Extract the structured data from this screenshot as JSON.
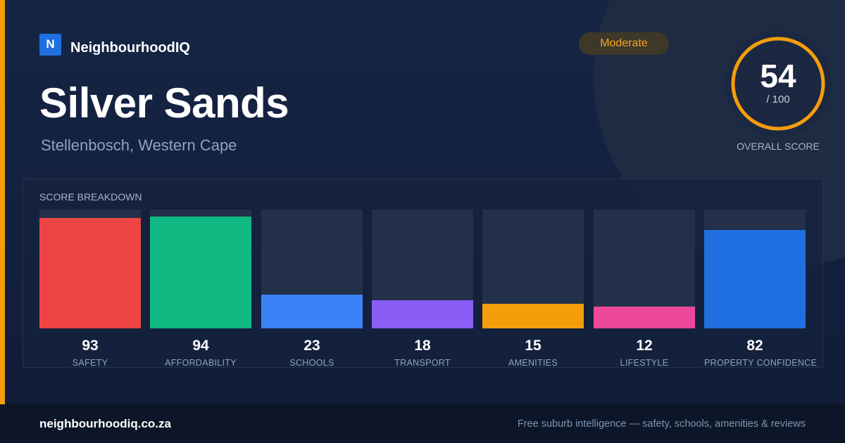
{
  "brand": {
    "logo_letter": "N",
    "name": "NeighbourhoodIQ",
    "color": "#1f6fe0"
  },
  "suburb": {
    "name": "Silver Sands",
    "location": "Stellenbosch, Western Cape"
  },
  "rating": {
    "label": "Moderate",
    "color": "#f5a623"
  },
  "overall": {
    "score": "54",
    "max": "/ 100",
    "label": "OVERALL SCORE",
    "value": 54,
    "ring_color": "#f59e0b"
  },
  "breakdown": {
    "title": "SCORE BREAKDOWN",
    "items": [
      {
        "label": "SAFETY",
        "value": 93,
        "display": "93",
        "color": "#ef4444"
      },
      {
        "label": "AFFORDABILITY",
        "value": 94,
        "display": "94",
        "color": "#10b981"
      },
      {
        "label": "SCHOOLS",
        "value": 23,
        "display": "23",
        "color": "#3b82f6"
      },
      {
        "label": "TRANSPORT",
        "value": 18,
        "display": "18",
        "color": "#8b5cf6"
      },
      {
        "label": "AMENITIES",
        "value": 15,
        "display": "15",
        "color": "#f59e0b"
      },
      {
        "label": "LIFESTYLE",
        "value": 12,
        "display": "12",
        "color": "#ec4899"
      },
      {
        "label": "PROPERTY CONFIDENCE",
        "value": 82,
        "display": "82",
        "color": "#1f6fe0"
      }
    ]
  },
  "footer": {
    "domain": "neighbourhoodiq.co.za",
    "tagline": "Free suburb intelligence — safety, schools, amenities & reviews"
  }
}
